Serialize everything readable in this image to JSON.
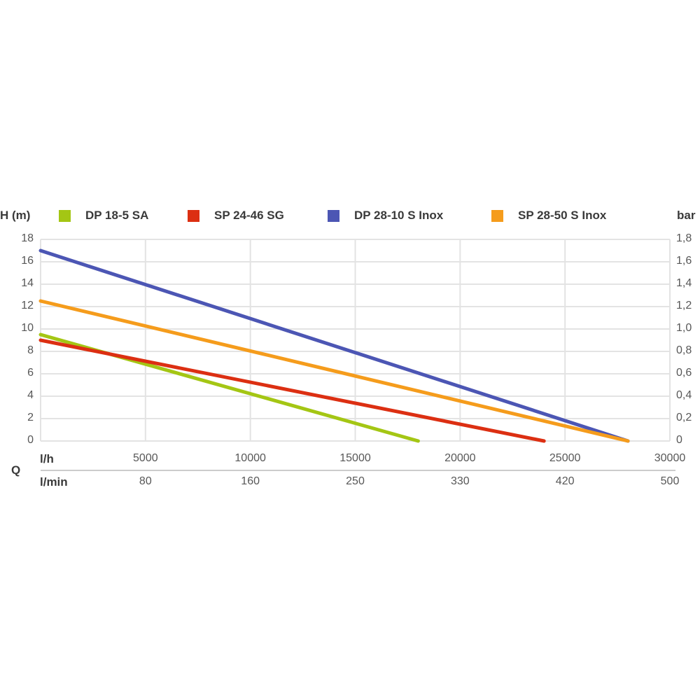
{
  "page": {
    "background": "#ffffff"
  },
  "labels": {
    "y_left_title": "H (m)",
    "y_right_title": "bar",
    "x_title": "Q",
    "row1_unit": "l/h",
    "row2_unit": "l/min"
  },
  "chart_data": {
    "type": "line",
    "title": "",
    "legend_position": "top",
    "grid": true,
    "grid_color": "#e3e3e3",
    "y_left": {
      "label": "H (m)",
      "ticks": [
        18,
        16,
        14,
        12,
        10,
        8,
        6,
        4,
        2,
        0
      ],
      "range": [
        0,
        18
      ]
    },
    "y_right": {
      "label": "bar",
      "tick_labels": [
        "1,8",
        "1,6",
        "1,4",
        "1,2",
        "1,0",
        "0,8",
        "0,6",
        "0,4",
        "0,2",
        "0"
      ],
      "range": [
        0,
        1.8
      ]
    },
    "x": {
      "label": "Q",
      "range": [
        0,
        30000
      ],
      "rows": [
        {
          "unit": "l/h",
          "ticks": [
            5000,
            10000,
            15000,
            20000,
            25000,
            30000
          ]
        },
        {
          "unit": "l/min",
          "ticks": [
            80,
            160,
            250,
            330,
            420,
            500
          ]
        }
      ]
    },
    "series": [
      {
        "name": "DP 18-5 SA",
        "color": "#a4c614",
        "points": [
          [
            0,
            9.5
          ],
          [
            18000,
            0
          ]
        ]
      },
      {
        "name": "SP 24-46 SG",
        "color": "#dc2f12",
        "points": [
          [
            0,
            9.0
          ],
          [
            24000,
            0
          ]
        ]
      },
      {
        "name": "DP 28-10 S Inox",
        "color": "#4c56b4",
        "points": [
          [
            0,
            17.0
          ],
          [
            28000,
            0
          ]
        ]
      },
      {
        "name": "SP 28-50 S Inox",
        "color": "#f59c1c",
        "points": [
          [
            0,
            12.5
          ],
          [
            28000,
            0
          ]
        ]
      }
    ]
  }
}
